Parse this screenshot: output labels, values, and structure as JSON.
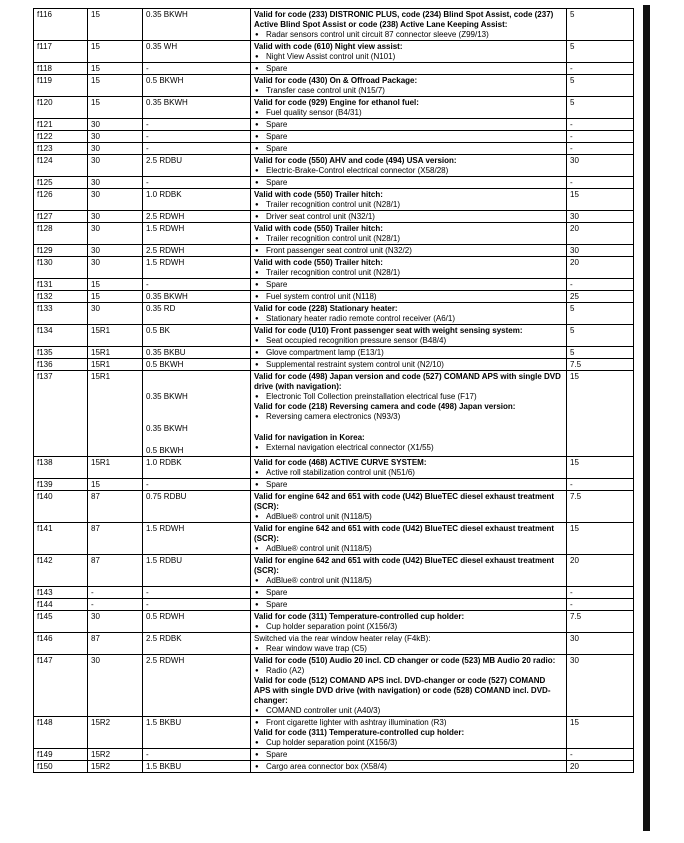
{
  "rows": [
    {
      "fuse": "f116",
      "terminal": "15",
      "wire": [
        "0.35 BKWH"
      ],
      "function": [
        {
          "heading": "Valid for code (233) DISTRONIC PLUS, code (234) Blind Spot Assist, code (237) Active Blind Spot Assist or code (238) Active Lane Keeping Assist:"
        },
        {
          "bullet": "Radar sensors control unit circuit 87 connector sleeve (Z99/13)"
        }
      ],
      "amps": "5"
    },
    {
      "fuse": "f117",
      "terminal": "15",
      "wire": [
        "0.35 WH"
      ],
      "function": [
        {
          "heading": "Valid with code (610) Night view assist:"
        },
        {
          "bullet": "Night View Assist control unit (N101)"
        }
      ],
      "amps": "5"
    },
    {
      "fuse": "f118",
      "terminal": "15",
      "wire": [
        "-"
      ],
      "function": [
        {
          "bullet": "Spare"
        }
      ],
      "amps": "-"
    },
    {
      "fuse": "f119",
      "terminal": "15",
      "wire": [
        "0.5 BKWH"
      ],
      "function": [
        {
          "heading": "Valid for code (430) On & Offroad Package:"
        },
        {
          "bullet": "Transfer case control unit (N15/7)"
        }
      ],
      "amps": "5"
    },
    {
      "fuse": "f120",
      "terminal": "15",
      "wire": [
        "0.35 BKWH"
      ],
      "function": [
        {
          "heading": "Valid for code (929) Engine for ethanol fuel:"
        },
        {
          "bullet": "Fuel quality sensor (B4/31)"
        }
      ],
      "amps": "5"
    },
    {
      "fuse": "f121",
      "terminal": "30",
      "wire": [
        "-"
      ],
      "function": [
        {
          "bullet": "Spare"
        }
      ],
      "amps": "-"
    },
    {
      "fuse": "f122",
      "terminal": "30",
      "wire": [
        "-"
      ],
      "function": [
        {
          "bullet": "Spare"
        }
      ],
      "amps": "-"
    },
    {
      "fuse": "f123",
      "terminal": "30",
      "wire": [
        "-"
      ],
      "function": [
        {
          "bullet": "Spare"
        }
      ],
      "amps": "-"
    },
    {
      "fuse": "f124",
      "terminal": "30",
      "wire": [
        "2.5 RDBU"
      ],
      "function": [
        {
          "heading": "Valid for code (550) AHV and code (494) USA version:"
        },
        {
          "bullet": "Electric-Brake-Control electrical connector (X58/28)"
        }
      ],
      "amps": "30"
    },
    {
      "fuse": "f125",
      "terminal": "30",
      "wire": [
        "-"
      ],
      "function": [
        {
          "bullet": "Spare"
        }
      ],
      "amps": "-"
    },
    {
      "fuse": "f126",
      "terminal": "30",
      "wire": [
        "1.0 RDBK"
      ],
      "function": [
        {
          "heading": "Valid with code (550) Trailer hitch:"
        },
        {
          "bullet": "Trailer recognition control unit (N28/1)"
        }
      ],
      "amps": "15"
    },
    {
      "fuse": "f127",
      "terminal": "30",
      "wire": [
        "2.5 RDWH"
      ],
      "function": [
        {
          "bullet": "Driver seat control unit (N32/1)"
        }
      ],
      "amps": "30"
    },
    {
      "fuse": "f128",
      "terminal": "30",
      "wire": [
        "1.5 RDWH"
      ],
      "function": [
        {
          "heading": "Valid with code (550) Trailer hitch:"
        },
        {
          "bullet": "Trailer recognition control unit (N28/1)"
        }
      ],
      "amps": "20"
    },
    {
      "fuse": "f129",
      "terminal": "30",
      "wire": [
        "2.5 RDWH"
      ],
      "function": [
        {
          "bullet": "Front passenger seat control unit (N32/2)"
        }
      ],
      "amps": "30"
    },
    {
      "fuse": "f130",
      "terminal": "30",
      "wire": [
        "1.5 RDWH"
      ],
      "function": [
        {
          "heading": "Valid with code (550) Trailer hitch:"
        },
        {
          "bullet": "Trailer recognition control unit (N28/1)"
        }
      ],
      "amps": "20"
    },
    {
      "fuse": "f131",
      "terminal": "15",
      "wire": [
        "-"
      ],
      "function": [
        {
          "bullet": "Spare"
        }
      ],
      "amps": "-"
    },
    {
      "fuse": "f132",
      "terminal": "15",
      "wire": [
        "0.35 BKWH"
      ],
      "function": [
        {
          "bullet": "Fuel system control unit (N118)"
        }
      ],
      "amps": "25"
    },
    {
      "fuse": "f133",
      "terminal": "30",
      "wire": [
        "0.35 RD"
      ],
      "function": [
        {
          "heading": "Valid for code (228) Stationary heater:"
        },
        {
          "bullet": "Stationary heater radio remote control receiver (A6/1)"
        }
      ],
      "amps": "5"
    },
    {
      "fuse": "f134",
      "terminal": "15R1",
      "wire": [
        "0.5 BK"
      ],
      "function": [
        {
          "heading": "Valid for code (U10) Front passenger seat with weight sensing system:"
        },
        {
          "bullet": "Seat occupied recognition pressure sensor (B48/4)"
        }
      ],
      "amps": "5"
    },
    {
      "fuse": "f135",
      "terminal": "15R1",
      "wire": [
        "0.35 BKBU"
      ],
      "function": [
        {
          "bullet": "Glove compartment lamp (E13/1)"
        }
      ],
      "amps": "5"
    },
    {
      "fuse": "f136",
      "terminal": "15R1",
      "wire": [
        "0.5 BKWH"
      ],
      "function": [
        {
          "bullet": "Supplemental restraint system control unit (N2/10)"
        }
      ],
      "amps": "7.5"
    },
    {
      "fuse": "f137",
      "terminal": "15R1",
      "wire": [
        "0.35 BKWH",
        "0.35 BKWH",
        "0.5 BKWH"
      ],
      "function": [
        {
          "heading": "Valid for code (498) Japan version and code (527) COMAND APS with single DVD drive (with navigation):"
        },
        {
          "bullet": "Electronic Toll Collection preinstallation electrical fuse (F17)"
        },
        {
          "heading": "Valid for code (218) Reversing camera and code (498) Japan version:"
        },
        {
          "bullet": "Reversing camera electronics (N93/3)"
        },
        {
          "heading": "Valid for navigation in Korea:"
        },
        {
          "bullet": "External navigation electrical connector (X1/55)"
        }
      ],
      "amps": "15"
    },
    {
      "fuse": "f138",
      "terminal": "15R1",
      "wire": [
        "1.0 RDBK"
      ],
      "function": [
        {
          "heading": "Valid for code (468) ACTIVE CURVE SYSTEM:"
        },
        {
          "bullet": "Active roll stabilization control unit (N51/6)"
        }
      ],
      "amps": "15"
    },
    {
      "fuse": "f139",
      "terminal": "15",
      "wire": [
        "-"
      ],
      "function": [
        {
          "bullet": "Spare"
        }
      ],
      "amps": "-"
    },
    {
      "fuse": "f140",
      "terminal": "87",
      "wire": [
        "0.75 RDBU"
      ],
      "function": [
        {
          "heading": "Valid for engine 642 and 651 with code (U42) BlueTEC diesel exhaust treatment (SCR):"
        },
        {
          "bullet": "AdBlue® control unit (N118/5)"
        }
      ],
      "amps": "7.5"
    },
    {
      "fuse": "f141",
      "terminal": "87",
      "wire": [
        "1.5 RDWH"
      ],
      "function": [
        {
          "heading": "Valid for engine 642 and 651 with code (U42) BlueTEC diesel exhaust treatment (SCR):"
        },
        {
          "bullet": "AdBlue® control unit (N118/5)"
        }
      ],
      "amps": "15"
    },
    {
      "fuse": "f142",
      "terminal": "87",
      "wire": [
        "1.5 RDBU"
      ],
      "function": [
        {
          "heading": "Valid for engine 642 and 651 with code (U42) BlueTEC diesel exhaust treatment (SCR):"
        },
        {
          "bullet": "AdBlue® control unit (N118/5)"
        }
      ],
      "amps": "20"
    },
    {
      "fuse": "f143",
      "terminal": "-",
      "wire": [
        "-"
      ],
      "function": [
        {
          "bullet": "Spare"
        }
      ],
      "amps": "-"
    },
    {
      "fuse": "f144",
      "terminal": "-",
      "wire": [
        "-"
      ],
      "function": [
        {
          "bullet": "Spare"
        }
      ],
      "amps": "-"
    },
    {
      "fuse": "f145",
      "terminal": "30",
      "wire": [
        "0.5 RDWH"
      ],
      "function": [
        {
          "heading": "Valid for code (311) Temperature-controlled cup holder:"
        },
        {
          "bullet": "Cup holder separation point (X156/3)"
        }
      ],
      "amps": "7.5"
    },
    {
      "fuse": "f146",
      "terminal": "87",
      "wire": [
        "2.5 RDBK"
      ],
      "function": [
        {
          "text": "Switched via the rear window heater relay (F4kB):"
        },
        {
          "bullet": "Rear window wave trap (C5)"
        }
      ],
      "amps": "30"
    },
    {
      "fuse": "f147",
      "terminal": "30",
      "wire": [
        "2.5 RDWH"
      ],
      "function": [
        {
          "heading": "Valid for code (510) Audio 20 incl. CD changer or code (523) MB Audio 20 radio:"
        },
        {
          "bullet": "Radio (A2)"
        },
        {
          "heading": "Valid for code (512) COMAND APS incl. DVD-changer or code (527) COMAND APS with single DVD drive (with navigation) or code (528) COMAND incl. DVD-changer:"
        },
        {
          "bullet": "COMAND controller unit (A40/3)"
        }
      ],
      "amps": "30"
    },
    {
      "fuse": "f148",
      "terminal": "15R2",
      "wire": [
        "1.5 BKBU"
      ],
      "function": [
        {
          "bullet": "Front cigarette lighter with ashtray illumination (R3)"
        },
        {
          "heading": "Valid for code (311) Temperature-controlled cup holder:"
        },
        {
          "bullet": "Cup holder separation point (X156/3)"
        }
      ],
      "amps": "15"
    },
    {
      "fuse": "f149",
      "terminal": "15R2",
      "wire": [
        "-"
      ],
      "function": [
        {
          "bullet": "Spare"
        }
      ],
      "amps": "-"
    },
    {
      "fuse": "f150",
      "terminal": "15R2",
      "wire": [
        "1.5 BKBU"
      ],
      "function": [
        {
          "bullet": "Cargo area connector box (X58/4)"
        }
      ],
      "amps": "20"
    }
  ]
}
